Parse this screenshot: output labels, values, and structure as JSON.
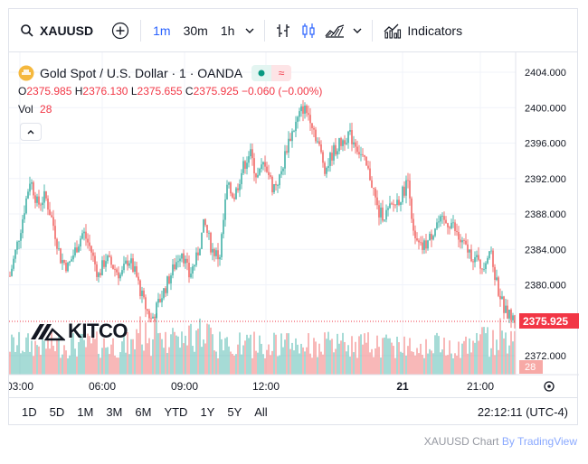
{
  "toolbar": {
    "symbol": "XAUUSD",
    "timeframes": [
      "1m",
      "30m",
      "1h"
    ],
    "active_timeframe": "1m",
    "indicators_label": "Indicators"
  },
  "legend": {
    "title": "Gold Spot / U.S. Dollar · 1 · OANDA",
    "ohlc": {
      "o_label": "O",
      "o": "2375.985",
      "h_label": "H",
      "h": "2376.130",
      "l_label": "L",
      "l": "2375.655",
      "c_label": "C",
      "c": "2375.925",
      "change": "−0.060 (−0.00%)"
    },
    "vol_label": "Vol",
    "vol_value": "28"
  },
  "price_axis": {
    "labels": [
      "2404.000",
      "2400.000",
      "2396.000",
      "2392.000",
      "2388.000",
      "2384.000",
      "2380.000",
      "2372.000"
    ],
    "last_price": "2375.925",
    "last_volume": "28"
  },
  "time_axis": {
    "labels": [
      "03:00",
      "06:00",
      "09:00",
      "12:00",
      "21",
      "21:00"
    ]
  },
  "bottombar": {
    "ranges": [
      "1D",
      "5D",
      "1M",
      "3M",
      "6M",
      "YTD",
      "1Y",
      "5Y",
      "All"
    ],
    "clock": "22:12:11 (UTC-4)"
  },
  "watermark": "KITCO",
  "attribution": {
    "symbol": "XAUUSD Chart",
    "by": "By",
    "brand": "TradingView"
  },
  "colors": {
    "up": "#26a69a",
    "down": "#ef5350",
    "accent": "#2962ff",
    "last_price_bg": "#f23645"
  },
  "chart_data": {
    "type": "candlestick",
    "x_labels": [
      "03:00",
      "06:00",
      "09:00",
      "12:00",
      "21",
      "21:00"
    ],
    "ylim": [
      2370,
      2406
    ],
    "close_path": [
      {
        "x": 0.0,
        "y": 2381
      },
      {
        "x": 0.02,
        "y": 2386
      },
      {
        "x": 0.04,
        "y": 2392
      },
      {
        "x": 0.055,
        "y": 2389
      },
      {
        "x": 0.07,
        "y": 2390
      },
      {
        "x": 0.085,
        "y": 2387
      },
      {
        "x": 0.1,
        "y": 2383
      },
      {
        "x": 0.115,
        "y": 2382
      },
      {
        "x": 0.13,
        "y": 2384
      },
      {
        "x": 0.145,
        "y": 2386
      },
      {
        "x": 0.16,
        "y": 2384
      },
      {
        "x": 0.175,
        "y": 2381
      },
      {
        "x": 0.19,
        "y": 2383
      },
      {
        "x": 0.205,
        "y": 2382
      },
      {
        "x": 0.22,
        "y": 2381
      },
      {
        "x": 0.235,
        "y": 2383
      },
      {
        "x": 0.25,
        "y": 2381
      },
      {
        "x": 0.265,
        "y": 2378
      },
      {
        "x": 0.28,
        "y": 2376
      },
      {
        "x": 0.295,
        "y": 2378
      },
      {
        "x": 0.31,
        "y": 2380
      },
      {
        "x": 0.325,
        "y": 2382
      },
      {
        "x": 0.34,
        "y": 2384
      },
      {
        "x": 0.355,
        "y": 2381
      },
      {
        "x": 0.37,
        "y": 2383
      },
      {
        "x": 0.385,
        "y": 2387
      },
      {
        "x": 0.4,
        "y": 2384
      },
      {
        "x": 0.415,
        "y": 2383
      },
      {
        "x": 0.43,
        "y": 2391
      },
      {
        "x": 0.445,
        "y": 2390
      },
      {
        "x": 0.46,
        "y": 2393
      },
      {
        "x": 0.475,
        "y": 2395
      },
      {
        "x": 0.49,
        "y": 2392
      },
      {
        "x": 0.505,
        "y": 2394
      },
      {
        "x": 0.52,
        "y": 2391
      },
      {
        "x": 0.535,
        "y": 2392
      },
      {
        "x": 0.55,
        "y": 2396
      },
      {
        "x": 0.565,
        "y": 2398
      },
      {
        "x": 0.58,
        "y": 2400
      },
      {
        "x": 0.595,
        "y": 2399
      },
      {
        "x": 0.61,
        "y": 2396
      },
      {
        "x": 0.625,
        "y": 2393
      },
      {
        "x": 0.64,
        "y": 2395
      },
      {
        "x": 0.655,
        "y": 2396
      },
      {
        "x": 0.67,
        "y": 2397
      },
      {
        "x": 0.685,
        "y": 2396
      },
      {
        "x": 0.7,
        "y": 2394
      },
      {
        "x": 0.715,
        "y": 2392
      },
      {
        "x": 0.73,
        "y": 2388
      },
      {
        "x": 0.745,
        "y": 2388
      },
      {
        "x": 0.76,
        "y": 2389
      },
      {
        "x": 0.775,
        "y": 2390
      },
      {
        "x": 0.79,
        "y": 2392
      },
      {
        "x": 0.8,
        "y": 2385
      },
      {
        "x": 0.815,
        "y": 2384
      },
      {
        "x": 0.83,
        "y": 2385
      },
      {
        "x": 0.845,
        "y": 2387
      },
      {
        "x": 0.86,
        "y": 2387
      },
      {
        "x": 0.875,
        "y": 2387
      },
      {
        "x": 0.89,
        "y": 2385
      },
      {
        "x": 0.905,
        "y": 2384
      },
      {
        "x": 0.92,
        "y": 2383
      },
      {
        "x": 0.935,
        "y": 2382
      },
      {
        "x": 0.95,
        "y": 2384
      },
      {
        "x": 0.965,
        "y": 2380
      },
      {
        "x": 0.98,
        "y": 2377
      },
      {
        "x": 1.0,
        "y": 2376
      }
    ]
  }
}
